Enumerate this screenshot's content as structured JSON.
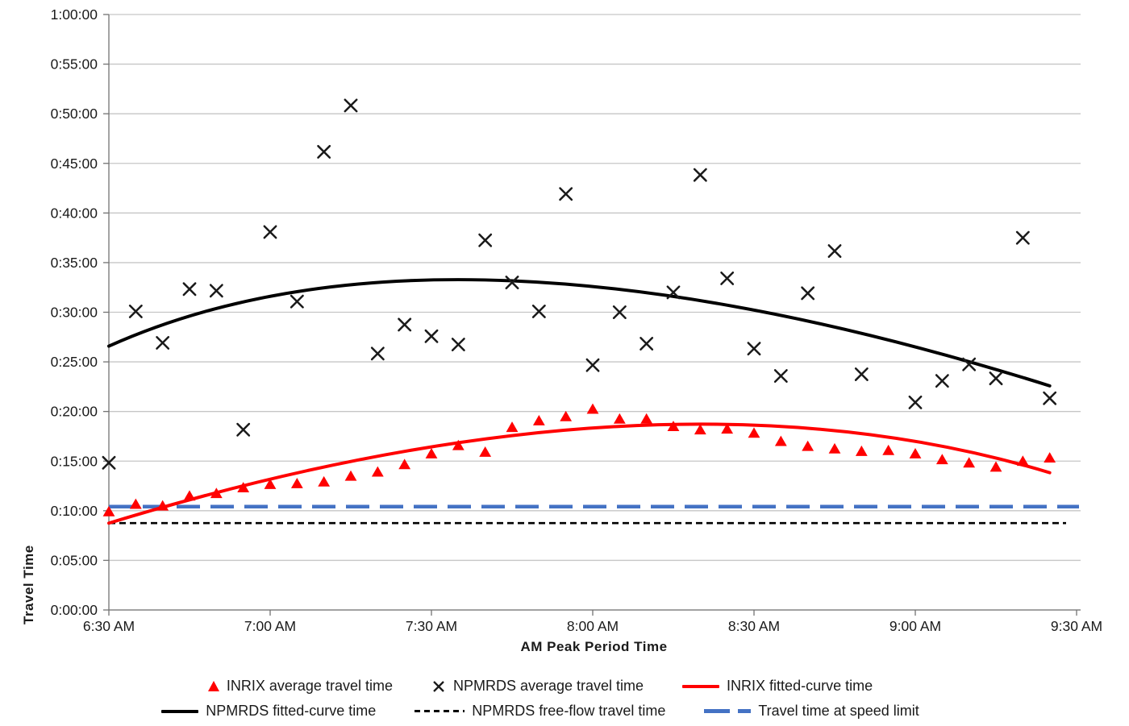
{
  "chart_data": {
    "type": "scatter",
    "title": "",
    "xlabel": "AM Peak Period Time",
    "ylabel": "Travel Time",
    "x_ticks": [
      "6:30 AM",
      "7:00 AM",
      "7:30 AM",
      "8:00 AM",
      "8:30 AM",
      "9:00 AM",
      "9:30 AM"
    ],
    "y_ticks": [
      "0:00:00",
      "0:05:00",
      "0:10:00",
      "0:15:00",
      "0:20:00",
      "0:25:00",
      "0:30:00",
      "0:35:00",
      "0:40:00",
      "0:45:00",
      "0:50:00",
      "0:55:00",
      "1:00:00"
    ],
    "x_range": [
      "6:30 AM",
      "9:30 AM"
    ],
    "y_range_hms": [
      "0:00:00",
      "1:00:00"
    ],
    "grid": "horizontal-only",
    "legend_position": "bottom",
    "sample_times": [
      "6:30 AM",
      "6:35 AM",
      "6:40 AM",
      "6:45 AM",
      "6:50 AM",
      "6:55 AM",
      "7:00 AM",
      "7:05 AM",
      "7:10 AM",
      "7:15 AM",
      "7:20 AM",
      "7:25 AM",
      "7:30 AM",
      "7:35 AM",
      "7:40 AM",
      "7:45 AM",
      "7:50 AM",
      "7:55 AM",
      "8:00 AM",
      "8:05 AM",
      "8:10 AM",
      "8:15 AM",
      "8:20 AM",
      "8:25 AM",
      "8:30 AM",
      "8:35 AM",
      "8:40 AM",
      "8:45 AM",
      "8:50 AM",
      "8:55 AM",
      "9:00 AM",
      "9:05 AM",
      "9:10 AM",
      "9:15 AM",
      "9:20 AM",
      "9:25 AM"
    ],
    "series": [
      {
        "name": "INRIX average travel time",
        "type": "scatter",
        "marker": "triangle",
        "color": "#FF0000",
        "values_hms": [
          "0:09:55",
          "0:10:40",
          "0:10:30",
          "0:11:30",
          "0:11:45",
          "0:12:20",
          "0:12:40",
          "0:12:45",
          "0:12:55",
          "0:13:30",
          "0:13:55",
          "0:14:40",
          "0:15:45",
          "0:16:35",
          "0:15:55",
          "0:18:25",
          "0:19:05",
          "0:19:30",
          "0:20:15",
          "0:19:15",
          "0:19:15",
          "0:18:30",
          "0:18:10",
          "0:18:15",
          "0:17:50",
          "0:17:00",
          "0:16:30",
          "0:16:15",
          "0:16:00",
          "0:16:05",
          "0:15:45",
          "0:15:10",
          "0:14:50",
          "0:14:25",
          "0:15:00",
          "0:15:20"
        ]
      },
      {
        "name": "NPMRDS average travel time",
        "type": "scatter",
        "marker": "x",
        "color": "#1a1a1a",
        "values_hms": [
          "0:14:50",
          "0:30:05",
          "0:26:55",
          "0:32:20",
          "0:32:10",
          "0:18:10",
          "0:38:05",
          "0:31:05",
          "0:46:10",
          "0:50:50",
          "0:25:50",
          "0:28:45",
          "0:27:35",
          "0:26:45",
          "0:37:15",
          "0:33:00",
          "0:30:05",
          "0:41:55",
          "0:24:40",
          "0:30:00",
          "0:26:50",
          "0:32:00",
          "0:43:50",
          "0:33:25",
          "0:26:20",
          "0:23:35",
          "0:31:55",
          "0:36:10",
          "0:23:45",
          null,
          "0:20:55",
          "0:23:05",
          "0:24:45",
          "0:23:20",
          "0:37:30",
          "0:21:20"
        ]
      },
      {
        "name": "INRIX fitted-curve time",
        "type": "fitted-curve",
        "color": "#FF0000",
        "start": {
          "time": "6:30 AM",
          "value_hms": "0:08:45"
        },
        "peak": {
          "time": "8:05 AM",
          "value_hms": "0:18:30"
        },
        "end": {
          "time": "9:25 AM",
          "value_hms": "0:13:50"
        }
      },
      {
        "name": "NPMRDS fitted-curve time",
        "type": "fitted-curve",
        "color": "#000000",
        "start": {
          "time": "6:30 AM",
          "value_hms": "0:26:35"
        },
        "peak": {
          "time": "7:45 AM",
          "value_hms": "0:33:10"
        },
        "end": {
          "time": "9:25 AM",
          "value_hms": "0:22:35"
        }
      },
      {
        "name": "NPMRDS free-flow travel time",
        "type": "hline",
        "style": "dashed-short",
        "color": "#000000",
        "value_hms": "0:08:45"
      },
      {
        "name": "Travel time at speed limit",
        "type": "hline",
        "style": "dashed-long",
        "color": "#4472C4",
        "value_hms": "0:10:25"
      }
    ],
    "legend": {
      "rows": [
        [
          {
            "marker": "triangle",
            "color": "#FF0000",
            "label": "INRIX average travel time"
          },
          {
            "marker": "x",
            "color": "#1a1a1a",
            "label": "NPMRDS average travel time"
          },
          {
            "marker": "line",
            "color": "#FF0000",
            "label": "INRIX fitted-curve time"
          }
        ],
        [
          {
            "marker": "line",
            "color": "#000000",
            "label": "NPMRDS fitted-curve time"
          },
          {
            "marker": "dash",
            "color": "#000000",
            "label": "NPMRDS free-flow travel time"
          },
          {
            "marker": "longdash",
            "color": "#4472C4",
            "label": "Travel time at speed limit"
          }
        ]
      ]
    },
    "colors": {
      "inrix": "#FF0000",
      "npmrds": "#000000",
      "speed_limit": "#4472C4",
      "gridline": "#C6C6C6",
      "axis": "#737373"
    }
  }
}
